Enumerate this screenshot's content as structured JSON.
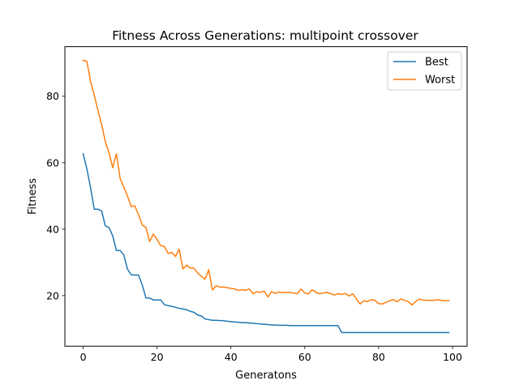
{
  "chart_data": {
    "type": "line",
    "title": "Fitness Across Generations: multipoint crossover",
    "xlabel": "Generatons",
    "ylabel": "Fitness",
    "xlim": [
      -4.95,
      103.95
    ],
    "ylim": [
      4.8,
      94.9
    ],
    "xticks": [
      0,
      20,
      40,
      60,
      80,
      100
    ],
    "yticks": [
      20,
      40,
      60,
      80
    ],
    "grid": false,
    "legend_position": "top-right",
    "series": [
      {
        "name": "Best",
        "color": "#1f77b4",
        "x": [
          0,
          1,
          2,
          3,
          4,
          5,
          6,
          7,
          8,
          9,
          10,
          11,
          12,
          13,
          14,
          15,
          16,
          17,
          18,
          19,
          20,
          21,
          22,
          23,
          24,
          25,
          26,
          27,
          28,
          29,
          30,
          31,
          32,
          33,
          34,
          35,
          36,
          37,
          38,
          39,
          40,
          41,
          42,
          43,
          44,
          45,
          46,
          47,
          48,
          49,
          50,
          51,
          52,
          53,
          54,
          55,
          56,
          57,
          58,
          59,
          60,
          61,
          62,
          63,
          64,
          65,
          66,
          67,
          68,
          69,
          70,
          71,
          72,
          73,
          74,
          75,
          76,
          77,
          78,
          79,
          80,
          81,
          82,
          83,
          84,
          85,
          86,
          87,
          88,
          89,
          90,
          91,
          92,
          93,
          94,
          95,
          96,
          97,
          98,
          99
        ],
        "values": [
          62.7,
          58.2,
          52.5,
          46.0,
          46.0,
          45.5,
          41.0,
          40.5,
          38.0,
          33.6,
          33.6,
          32.3,
          28.0,
          26.3,
          26.2,
          26.2,
          23.2,
          19.3,
          19.3,
          18.7,
          18.7,
          18.7,
          17.3,
          17.0,
          16.8,
          16.5,
          16.2,
          16.0,
          15.8,
          15.3,
          15.0,
          14.2,
          13.9,
          13.0,
          12.8,
          12.6,
          12.6,
          12.5,
          12.5,
          12.3,
          12.2,
          12.1,
          12.0,
          11.9,
          11.9,
          11.8,
          11.7,
          11.6,
          11.5,
          11.4,
          11.3,
          11.2,
          11.2,
          11.1,
          11.1,
          11.1,
          11.0,
          11.0,
          11.0,
          11.0,
          11.0,
          11.0,
          11.0,
          11.0,
          11.0,
          11.0,
          11.0,
          11.0,
          11.0,
          11.0,
          8.9,
          8.9,
          8.9,
          8.9,
          8.9,
          8.9,
          8.9,
          8.9,
          8.9,
          8.9,
          8.9,
          8.9,
          8.9,
          8.9,
          8.9,
          8.9,
          8.9,
          8.9,
          8.9,
          8.9,
          8.9,
          8.9,
          8.9,
          8.9,
          8.9,
          8.9,
          8.9,
          8.9,
          8.9,
          8.9
        ]
      },
      {
        "name": "Worst",
        "color": "#ff7f0e",
        "x": [
          0,
          1,
          2,
          3,
          4,
          5,
          6,
          7,
          8,
          9,
          10,
          11,
          12,
          13,
          14,
          15,
          16,
          17,
          18,
          19,
          20,
          21,
          22,
          23,
          24,
          25,
          26,
          27,
          28,
          29,
          30,
          31,
          32,
          33,
          34,
          35,
          36,
          37,
          38,
          39,
          40,
          41,
          42,
          43,
          44,
          45,
          46,
          47,
          48,
          49,
          50,
          51,
          52,
          53,
          54,
          55,
          56,
          57,
          58,
          59,
          60,
          61,
          62,
          63,
          64,
          65,
          66,
          67,
          68,
          69,
          70,
          71,
          72,
          73,
          74,
          75,
          76,
          77,
          78,
          79,
          80,
          81,
          82,
          83,
          84,
          85,
          86,
          87,
          88,
          89,
          90,
          91,
          92,
          93,
          94,
          95,
          96,
          97,
          98,
          99
        ],
        "values": [
          90.8,
          90.5,
          84.5,
          80.3,
          75.8,
          71.5,
          66.3,
          63.0,
          58.5,
          62.7,
          55.3,
          52.7,
          50.0,
          46.8,
          47.0,
          44.3,
          41.3,
          40.5,
          36.3,
          38.5,
          37.0,
          35.0,
          34.8,
          32.7,
          33.0,
          31.8,
          34.0,
          28.0,
          29.2,
          28.3,
          28.3,
          26.8,
          25.8,
          25.0,
          27.8,
          21.7,
          23.0,
          22.6,
          22.6,
          22.4,
          22.2,
          22.0,
          21.6,
          21.8,
          21.6,
          22.0,
          20.6,
          21.2,
          21.0,
          21.4,
          19.6,
          21.2,
          20.7,
          21.1,
          20.9,
          21.0,
          21.0,
          20.8,
          20.6,
          22.0,
          20.8,
          20.5,
          21.8,
          21.0,
          20.6,
          20.8,
          21.0,
          20.6,
          20.2,
          20.6,
          20.4,
          20.6,
          19.9,
          20.6,
          19.0,
          17.5,
          18.5,
          18.2,
          18.8,
          18.6,
          17.6,
          17.5,
          18.0,
          18.5,
          18.8,
          18.2,
          19.0,
          18.6,
          18.2,
          17.2,
          18.2,
          19.0,
          18.7,
          18.6,
          18.6,
          18.6,
          18.8,
          18.6,
          18.5,
          18.5
        ]
      }
    ]
  }
}
